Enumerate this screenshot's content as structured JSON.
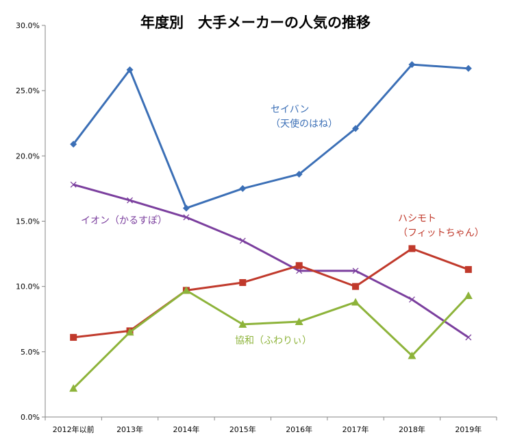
{
  "chart_data": {
    "type": "line",
    "title": "年度別　大手メーカーの人気の推移",
    "xlabel": "",
    "ylabel": "",
    "categories": [
      "2012年以前",
      "2013年",
      "2014年",
      "2015年",
      "2016年",
      "2017年",
      "2018年",
      "2019年"
    ],
    "ylim": [
      0,
      30
    ],
    "y_ticks": [
      0,
      5,
      10,
      15,
      20,
      25,
      30
    ],
    "y_tick_labels": [
      "0.0%",
      "5.0%",
      "10.0%",
      "15.0%",
      "20.0%",
      "25.0%",
      "30.0%"
    ],
    "grid": false,
    "legend": "none (series labeled inline)",
    "series": [
      {
        "name_lines": [
          "セイバン",
          "（天使のはね）"
        ],
        "color": "#3B6FB6",
        "marker": "diamond",
        "values": [
          20.9,
          26.6,
          16.0,
          17.5,
          18.6,
          22.1,
          27.0,
          26.7
        ]
      },
      {
        "name_lines": [
          "イオン（かるすぽ）"
        ],
        "color": "#7B3F9E",
        "marker": "x",
        "values": [
          17.8,
          16.6,
          15.3,
          13.5,
          11.2,
          11.2,
          9.0,
          6.1
        ]
      },
      {
        "name_lines": [
          "ハシモト",
          "（フィットちゃん）"
        ],
        "color": "#C0392B",
        "marker": "square",
        "values": [
          6.1,
          6.6,
          9.7,
          10.3,
          11.6,
          10.0,
          12.9,
          11.3
        ]
      },
      {
        "name_lines": [
          "協和（ふわりぃ）"
        ],
        "color": "#8DB33A",
        "marker": "triangle",
        "values": [
          2.2,
          6.5,
          9.7,
          7.1,
          7.3,
          8.8,
          4.7,
          9.3
        ]
      }
    ]
  }
}
